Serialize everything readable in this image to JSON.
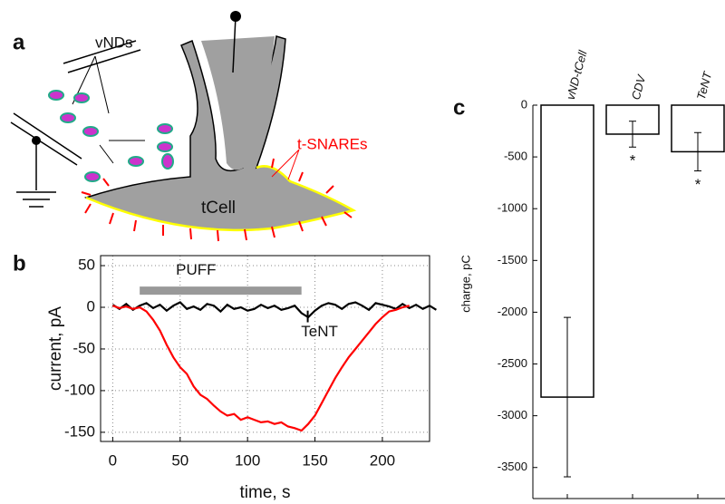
{
  "figure": {
    "panels": [
      "a",
      "b",
      "c"
    ]
  },
  "diagram": {
    "labels": {
      "vnds": "vNDs",
      "tsnares": "t-SNAREs",
      "tcell": "tCell"
    }
  },
  "chart_data": [
    {
      "type": "line",
      "x_label": "time, s",
      "y_label": "current, pA",
      "x": [
        0,
        5,
        10,
        15,
        20,
        25,
        30,
        35,
        40,
        45,
        50,
        55,
        60,
        65,
        70,
        75,
        80,
        85,
        90,
        95,
        100,
        105,
        110,
        115,
        120,
        125,
        130,
        135,
        140,
        145,
        150,
        155,
        160,
        165,
        170,
        175,
        180,
        185,
        190,
        195,
        200,
        205,
        210,
        215,
        220,
        225,
        230,
        235,
        240
      ],
      "series": [
        {
          "color": "#ff0000",
          "values": [
            2,
            -1,
            1,
            -2,
            0,
            -5,
            -15,
            -28,
            -45,
            -60,
            -72,
            -80,
            -95,
            -105,
            -110,
            -118,
            -125,
            -130,
            -128,
            -135,
            -132,
            -135,
            -138,
            -137,
            -140,
            -138,
            -143,
            -145,
            -148,
            -140,
            -130,
            -115,
            -100,
            -85,
            -72,
            -60,
            -50,
            -40,
            -30,
            -20,
            -12,
            -5,
            -3,
            0,
            2,
            null,
            null,
            null,
            null
          ]
        },
        {
          "color": "#000000",
          "values": [
            3,
            -2,
            4,
            -3,
            2,
            5,
            -1,
            3,
            -4,
            2,
            6,
            -2,
            1,
            -3,
            4,
            2,
            -5,
            3,
            -2,
            0,
            -4,
            -2,
            3,
            -1,
            2,
            -3,
            -1,
            2,
            -7,
            -12,
            -4,
            2,
            5,
            3,
            -2,
            4,
            6,
            2,
            -3,
            5,
            3,
            1,
            -2,
            4,
            -1,
            3,
            -2,
            2,
            -3
          ]
        }
      ],
      "xlim": [
        -9,
        235
      ],
      "ylim": [
        -161,
        62
      ],
      "xticks": [
        0,
        50,
        100,
        150,
        200
      ],
      "yticks": [
        50,
        0,
        -50,
        -100,
        -150
      ],
      "grid": true,
      "annotations": [
        {
          "text": "PUFF",
          "x": [
            20,
            140
          ],
          "y": 20,
          "color": "#999999"
        },
        {
          "text": "TeNT",
          "x": 148,
          "y": -30
        }
      ]
    },
    {
      "type": "bar",
      "y_label": "charge, pC",
      "categories": [
        "vND-tCell",
        "CDV",
        "TeNT"
      ],
      "values": [
        -2820,
        -280,
        -450
      ],
      "errors": [
        770,
        125,
        185
      ],
      "significance": [
        null,
        "*",
        "*"
      ],
      "color": "#ffffff",
      "ylim": [
        -3800,
        0
      ],
      "yticks": [
        0,
        -500,
        -1000,
        -1500,
        -2000,
        -2500,
        -3000,
        -3500
      ]
    }
  ]
}
